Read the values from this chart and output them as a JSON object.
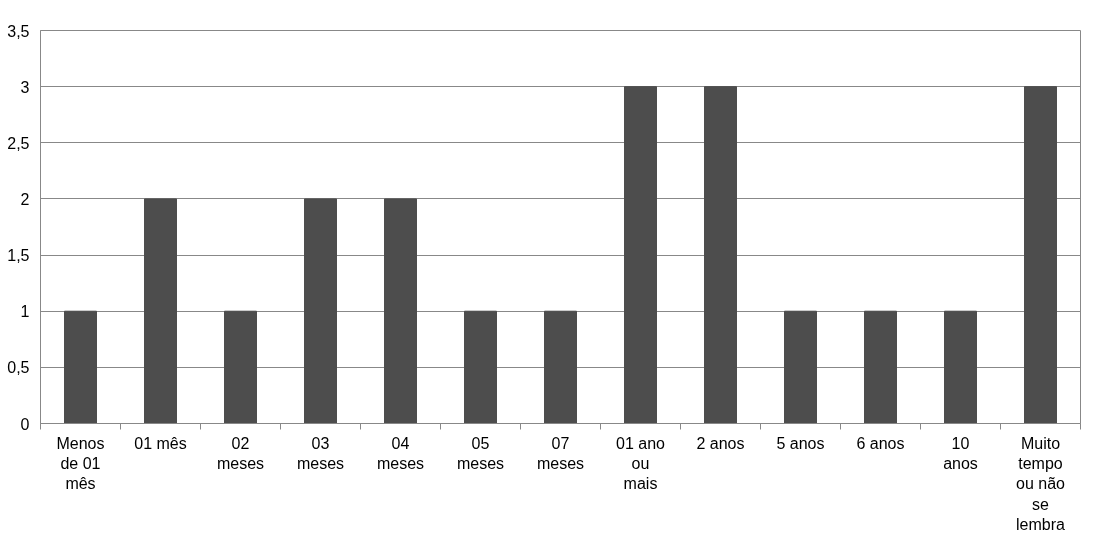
{
  "chart_data": {
    "type": "bar",
    "categories": [
      "Menos de 01 mês",
      "01 mês",
      "02 meses",
      "03 meses",
      "04 meses",
      "05 meses",
      "07 meses",
      "01 ano ou mais",
      "2 anos",
      "5 anos",
      "6 anos",
      "10 anos",
      "Muito tempo ou não se lembra"
    ],
    "values": [
      1,
      2,
      1,
      2,
      2,
      1,
      1,
      3,
      3,
      1,
      1,
      1,
      3
    ],
    "color": "#4d4d4d",
    "ylim": [
      0,
      3.5
    ],
    "yticks": [
      {
        "value": 0,
        "label": "0"
      },
      {
        "value": 0.5,
        "label": "0,5"
      },
      {
        "value": 1,
        "label": "1"
      },
      {
        "value": 1.5,
        "label": "1,5"
      },
      {
        "value": 2,
        "label": "2"
      },
      {
        "value": 2.5,
        "label": "2,5"
      },
      {
        "value": 3,
        "label": "3"
      },
      {
        "value": 3.5,
        "label": "3,5"
      }
    ],
    "grid": "y"
  }
}
